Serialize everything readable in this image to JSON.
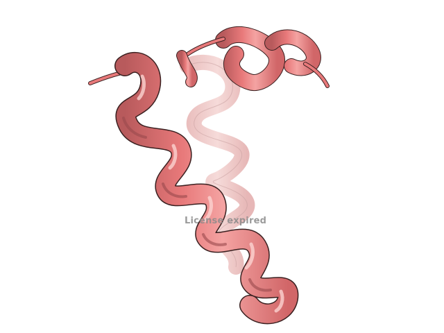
{
  "viewer": {
    "background_color": "#ffffff",
    "ribbon_color": "#e8797a",
    "ribbon_highlight": "#f6b3b1",
    "ribbon_shadow": "#9a4a4c",
    "ribbon_back_color": "#f0c2c0",
    "outline_color": "#3a2020",
    "representation": "cartoon",
    "watermark": "License expired"
  }
}
